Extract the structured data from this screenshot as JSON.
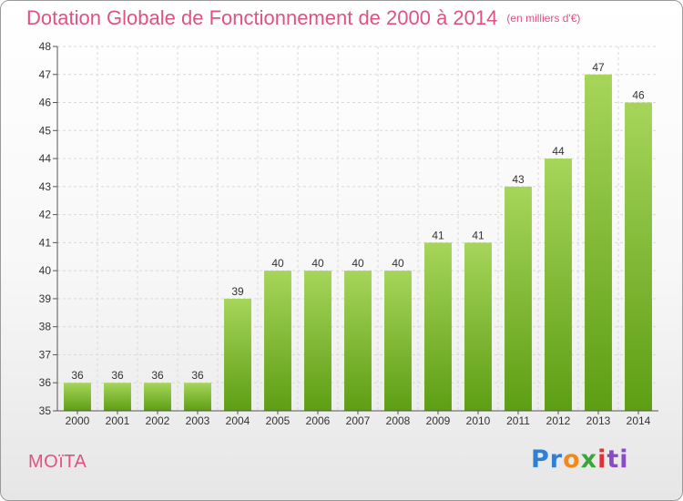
{
  "header": {
    "title": "Dotation Globale de Fonctionnement de 2000 à 2014",
    "subtitle": "(en milliers d'€)"
  },
  "footer": {
    "commune": "MOïTA",
    "logo": [
      "Pr",
      "o",
      "x",
      "i",
      "ti"
    ]
  },
  "colors": {
    "bar_top": "#a6d55a",
    "bar_bottom": "#5d9e14",
    "title": "#e05282",
    "grid": "#d9d9d9"
  },
  "chart_data": {
    "type": "bar",
    "categories": [
      "2000",
      "2001",
      "2002",
      "2003",
      "2004",
      "2005",
      "2006",
      "2007",
      "2008",
      "2009",
      "2010",
      "2011",
      "2012",
      "2013",
      "2014"
    ],
    "values": [
      36,
      36,
      36,
      36,
      39,
      40,
      40,
      40,
      40,
      41,
      41,
      43,
      44,
      47,
      46
    ],
    "data_labels": [
      "36",
      "36",
      "36",
      "36",
      "39",
      "40",
      "40",
      "40",
      "40",
      "41",
      "41",
      "43",
      "44",
      "47",
      "46"
    ],
    "title": "Dotation Globale de Fonctionnement de 2000 à 2014",
    "subtitle": "(en milliers d'€)",
    "xlabel": "",
    "ylabel": "",
    "ylim": [
      35,
      48
    ],
    "yticks": [
      35,
      36,
      37,
      38,
      39,
      40,
      41,
      42,
      43,
      44,
      45,
      46,
      47,
      48
    ],
    "grid": true,
    "legend": "none"
  }
}
